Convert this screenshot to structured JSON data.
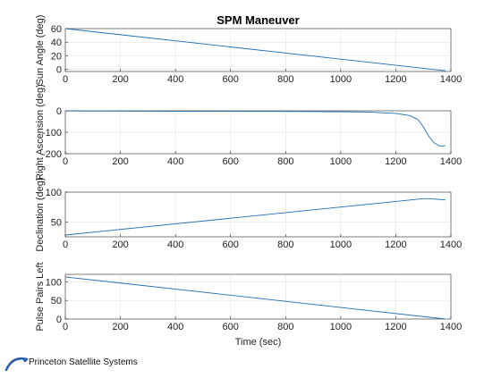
{
  "colors": {
    "series": "#1f6fb4",
    "grid": "#dcdcdc",
    "axes": "#262626",
    "logo_arc": "#2b5fa8"
  },
  "logo_text": "Princeton Satellite Systems",
  "chart_data": [
    {
      "type": "line",
      "title": "SPM Maneuver",
      "ylabel": "Sun Angle (deg)",
      "xlabel": "",
      "xlim": [
        0,
        1400
      ],
      "ylim": [
        -3,
        60
      ],
      "xticks": [
        0,
        200,
        400,
        600,
        800,
        1000,
        1200,
        1400
      ],
      "yticks": [
        0,
        20,
        40,
        60
      ],
      "grid": true,
      "series": [
        {
          "x": [
            0,
            1380
          ],
          "y": [
            60,
            -2
          ]
        }
      ]
    },
    {
      "type": "line",
      "title": "",
      "ylabel": "Right Ascension (deg)",
      "xlabel": "",
      "xlim": [
        0,
        1400
      ],
      "ylim": [
        -200,
        0
      ],
      "xticks": [
        0,
        200,
        400,
        600,
        800,
        1000,
        1200,
        1400
      ],
      "yticks": [
        -200,
        -100,
        0
      ],
      "grid": true,
      "series": [
        {
          "x": [
            0,
            400,
            800,
            1000,
            1100,
            1200,
            1250,
            1280,
            1300,
            1320,
            1340,
            1360,
            1380
          ],
          "y": [
            -1,
            -2,
            -3,
            -4,
            -6,
            -12,
            -22,
            -40,
            -75,
            -120,
            -150,
            -165,
            -162
          ]
        }
      ]
    },
    {
      "type": "line",
      "title": "",
      "ylabel": "Declination (deg)",
      "xlabel": "",
      "xlim": [
        0,
        1400
      ],
      "ylim": [
        25,
        100
      ],
      "xticks": [
        0,
        200,
        400,
        600,
        800,
        1000,
        1200,
        1400
      ],
      "yticks": [
        50,
        100
      ],
      "grid": true,
      "series": [
        {
          "x": [
            0,
            1300,
            1320,
            1380
          ],
          "y": [
            28,
            89,
            89,
            87
          ]
        }
      ]
    },
    {
      "type": "line",
      "title": "",
      "ylabel": "Pulse Pairs Left",
      "xlabel": "Time (sec)",
      "xlim": [
        0,
        1400
      ],
      "ylim": [
        0,
        120
      ],
      "xticks": [
        0,
        200,
        400,
        600,
        800,
        1000,
        1200,
        1400
      ],
      "yticks": [
        0,
        50,
        100
      ],
      "grid": true,
      "series": [
        {
          "x": [
            0,
            1380
          ],
          "y": [
            113,
            0
          ]
        }
      ]
    }
  ]
}
